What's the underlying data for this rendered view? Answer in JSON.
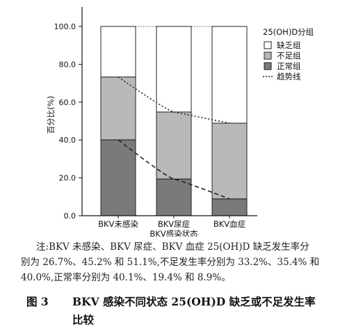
{
  "chart_data": {
    "type": "bar",
    "stacked": true,
    "categories": [
      "BKV未感染",
      "BKV尿症\nBKV感染状态",
      "BKV血症"
    ],
    "series": [
      {
        "name": "正常组",
        "values": [
          40.1,
          19.4,
          8.9
        ],
        "color": "#7a7a7a"
      },
      {
        "name": "不足组",
        "values": [
          33.2,
          35.4,
          40.0
        ],
        "color": "#b9b9b9"
      },
      {
        "name": "缺乏组",
        "values": [
          26.7,
          45.2,
          51.1
        ],
        "color": "#ffffff"
      }
    ],
    "trend_label": "趋势线",
    "ylabel": "百分比(%)",
    "yticks": [
      "0.0",
      "20.0",
      "40.0",
      "60.0",
      "80.0",
      "100.0"
    ],
    "ylim": [
      0,
      100
    ],
    "legend_title": "25(OH)D分组",
    "legend_position": "top-right",
    "grid": false
  },
  "note": {
    "line1": "注:BKV 未感染、BKV 尿症、BKV 血症 25(OH)D 缺乏发生率分",
    "line2": "别为 26.7%、45.2% 和 51.1%,不足发生率分别为 33.2%、35.4% 和",
    "line3": "40.0%,正常率分别为 40.1%、19.4% 和 8.9%。"
  },
  "caption": {
    "number": "图 3",
    "line1": "BKV 感染不同状态 25(OH)D 缺乏或不足发生率",
    "line2": "比较"
  }
}
